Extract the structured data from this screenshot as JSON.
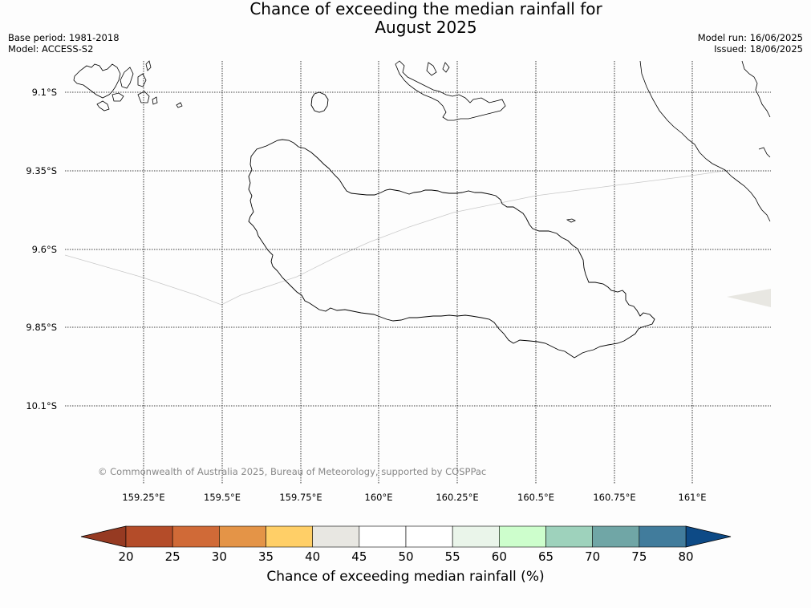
{
  "header": {
    "title_line1": "Chance of exceeding the median rainfall for",
    "title_line2": "August 2025",
    "base_period": "Base period: 1981-2018",
    "model": "Model: ACCESS-S2",
    "model_run": "Model run: 16/06/2025",
    "issued": "Issued: 18/06/2025"
  },
  "map": {
    "lat_labels": [
      "9.1°S",
      "9.35°S",
      "9.6°S",
      "9.85°S",
      "10.1°S"
    ],
    "lon_labels": [
      "159.25°E",
      "159.5°E",
      "159.75°E",
      "160°E",
      "160.25°E",
      "160.5°E",
      "160.75°E",
      "161°E"
    ],
    "copyright": "© Commonwealth of Australia 2025, Bureau of Meteorology, supported by COSPPac",
    "coast_color": "#000000",
    "grid_style": "dotted",
    "shaded_patch_color": "#e8e7e2"
  },
  "colorbar": {
    "ticks": [
      "20",
      "25",
      "30",
      "35",
      "40",
      "45",
      "50",
      "55",
      "60",
      "65",
      "70",
      "75",
      "80"
    ],
    "low_extend_color": "#963a22",
    "high_extend_color": "#0d4a86",
    "colors": [
      "#b44c29",
      "#d06a37",
      "#e49447",
      "#ffcf67",
      "#e8e7e2",
      "#ffffff",
      "#ffffff",
      "#eaf5ea",
      "#cdfecc",
      "#9ed2bc",
      "#70a6a6",
      "#417c9c"
    ],
    "label": "Chance of exceeding median rainfall (%)"
  }
}
